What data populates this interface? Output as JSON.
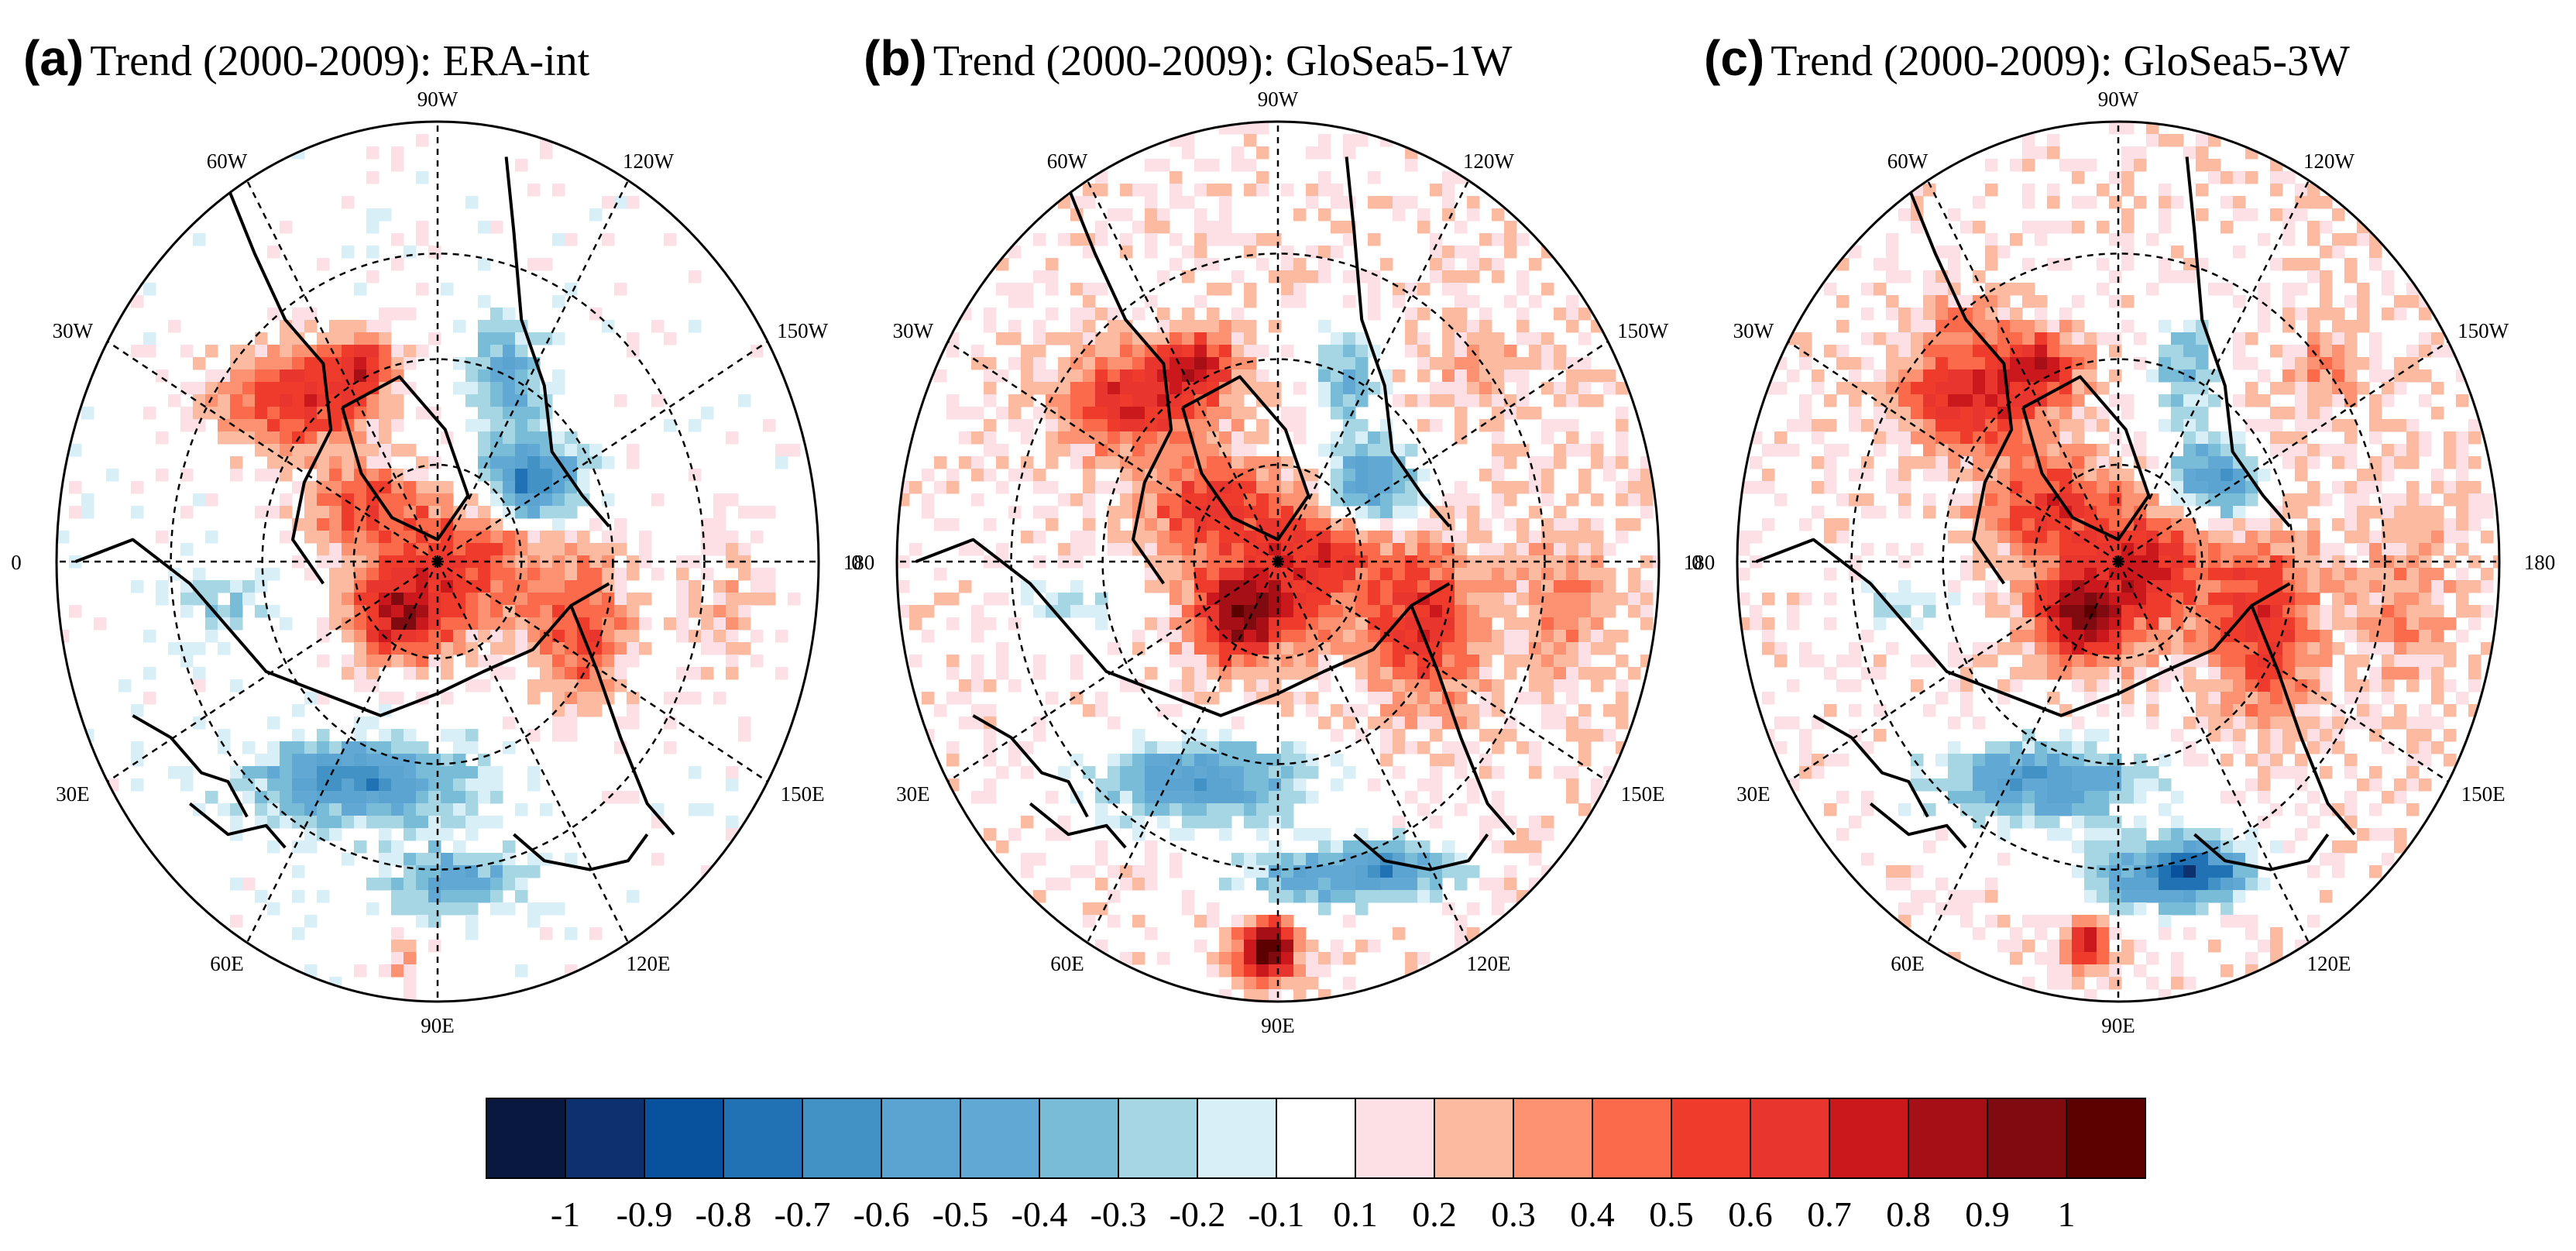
{
  "panels": [
    {
      "tag": "(a)",
      "title": "Trend (2000-2009): ERA-int",
      "variant": 0
    },
    {
      "tag": "(b)",
      "title": "Trend (2000-2009): GloSea5-1W",
      "variant": 1
    },
    {
      "tag": "(c)",
      "title": "Trend (2000-2009): GloSea5-3W",
      "variant": 2
    }
  ],
  "longitude_labels": [
    "90W",
    "120W",
    "150W",
    "180",
    "150E",
    "120E",
    "90E",
    "60E",
    "30E",
    "0",
    "30W",
    "60W"
  ],
  "colorbar": {
    "colors": [
      "#08183f",
      "#0d306f",
      "#08519c",
      "#2171b5",
      "#4292c6",
      "#5ba3d0",
      "#62a8d4",
      "#78bcd8",
      "#a6d6e4",
      "#d9eff7",
      "#ffffff",
      "#fde0e5",
      "#fcbba1",
      "#fc9272",
      "#fb6a4a",
      "#ef3b2c",
      "#e8362e",
      "#cb181d",
      "#a50f15",
      "#7f0a0f",
      "#5c0000"
    ],
    "tick_labels": [
      "-1",
      "-0.9",
      "-0.8",
      "-0.7",
      "-0.6",
      "-0.5",
      "-0.4",
      "-0.3",
      "-0.2",
      "-0.1",
      "0.1",
      "0.2",
      "0.3",
      "0.4",
      "0.5",
      "0.6",
      "0.7",
      "0.8",
      "0.9",
      "1"
    ]
  }
}
